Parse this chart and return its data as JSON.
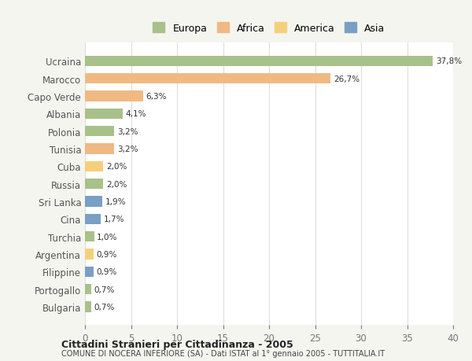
{
  "countries": [
    "Ucraina",
    "Marocco",
    "Capo Verde",
    "Albania",
    "Polonia",
    "Tunisia",
    "Cuba",
    "Russia",
    "Sri Lanka",
    "Cina",
    "Turchia",
    "Argentina",
    "Filippine",
    "Portogallo",
    "Bulgaria"
  ],
  "values": [
    37.8,
    26.7,
    6.3,
    4.1,
    3.2,
    3.2,
    2.0,
    2.0,
    1.9,
    1.7,
    1.0,
    0.9,
    0.9,
    0.7,
    0.7
  ],
  "labels": [
    "37,8%",
    "26,7%",
    "6,3%",
    "4,1%",
    "3,2%",
    "3,2%",
    "2,0%",
    "2,0%",
    "1,9%",
    "1,7%",
    "1,0%",
    "0,9%",
    "0,9%",
    "0,7%",
    "0,7%"
  ],
  "colors": [
    "#a8c08a",
    "#f0b983",
    "#f0b983",
    "#a8c08a",
    "#a8c08a",
    "#f0b983",
    "#f5d07a",
    "#a8c08a",
    "#7a9fc4",
    "#7a9fc4",
    "#a8c08a",
    "#f5d07a",
    "#7a9fc4",
    "#a8c08a",
    "#a8c08a"
  ],
  "continent": [
    "Europa",
    "Africa",
    "Africa",
    "Europa",
    "Europa",
    "Africa",
    "America",
    "Europa",
    "Asia",
    "Asia",
    "Europa",
    "America",
    "Asia",
    "Europa",
    "Europa"
  ],
  "legend_labels": [
    "Europa",
    "Africa",
    "America",
    "Asia"
  ],
  "legend_colors": [
    "#a8c08a",
    "#f0b983",
    "#f5d07a",
    "#7a9fc4"
  ],
  "title1": "Cittadini Stranieri per Cittadinanza - 2005",
  "title2": "COMUNE DI NOCERA INFERIORE (SA) - Dati ISTAT al 1° gennaio 2005 - TUTTITALIA.IT",
  "xlim": [
    0,
    40
  ],
  "xticks": [
    0,
    5,
    10,
    15,
    20,
    25,
    30,
    35,
    40
  ],
  "background_color": "#f5f5f0",
  "plot_bg_color": "#ffffff"
}
